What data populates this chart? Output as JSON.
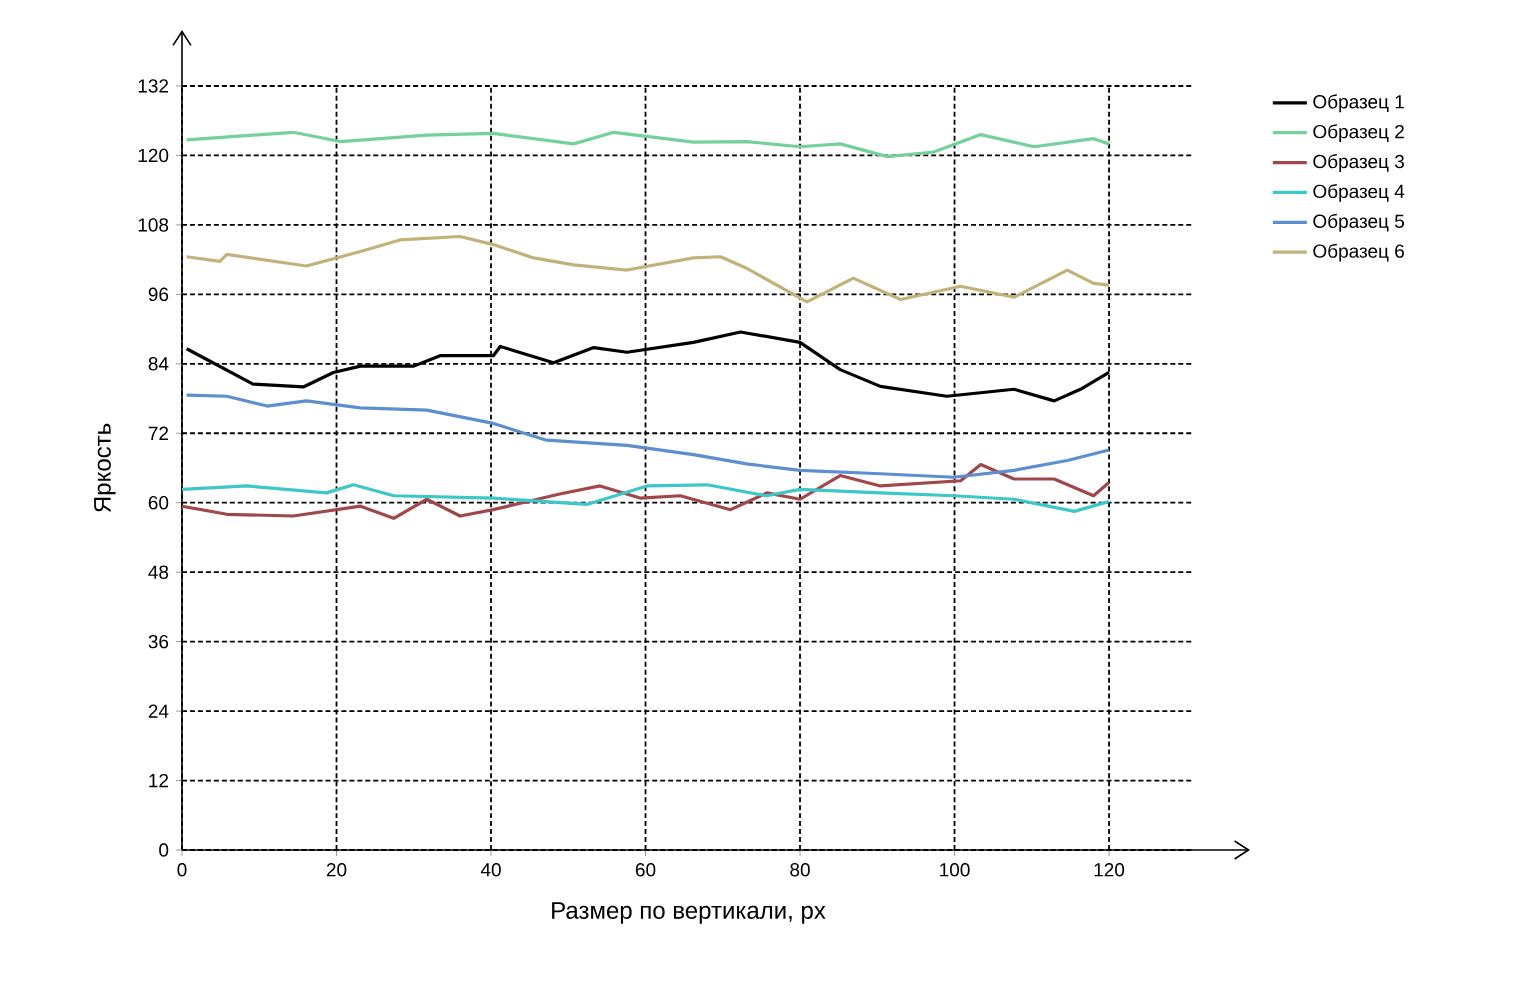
{
  "chart_data": {
    "type": "line",
    "xlabel": "Размер по вертикали, px",
    "ylabel": "Яркость",
    "xlim": [
      0,
      131
    ],
    "ylim": [
      0,
      132
    ],
    "xticks": [
      0,
      20,
      40,
      60,
      80,
      100,
      120
    ],
    "yticks": [
      0,
      12,
      24,
      36,
      48,
      60,
      72,
      84,
      96,
      108,
      120,
      132
    ],
    "grid": true,
    "legend": "right",
    "marker": "none",
    "line_style": "solid",
    "series": [
      {
        "name": "Образец 1",
        "color": "#000000",
        "x": [
          0.6,
          9.2,
          15.7,
          19.6,
          23.1,
          30,
          33.4,
          40.3,
          41.2,
          48.1,
          53.3,
          57.6,
          66.2,
          72.3,
          80,
          85.2,
          90.4,
          99,
          107.7,
          112.9,
          116.3,
          120
        ],
        "values": [
          86.6,
          80.5,
          80,
          82.5,
          83.6,
          83.6,
          85.4,
          85.4,
          87,
          84.2,
          86.8,
          86,
          87.7,
          89.5,
          87.7,
          83,
          80.1,
          78.4,
          79.6,
          77.6,
          79.6,
          82.5
        ]
      },
      {
        "name": "Образец 2",
        "color": "#74d19b",
        "x": [
          0.6,
          14.4,
          20.5,
          31.7,
          40.3,
          50.7,
          55.9,
          66.2,
          73.1,
          80,
          85.2,
          91.3,
          97.3,
          103.4,
          110.3,
          118,
          120
        ],
        "values": [
          122.7,
          124,
          122.4,
          123.5,
          123.8,
          122,
          124,
          122.3,
          122.4,
          121.5,
          122,
          119.8,
          120.6,
          123.6,
          121.5,
          122.9,
          122
        ]
      },
      {
        "name": "Образец 3",
        "color": "#a0474a",
        "x": [
          0,
          5.8,
          14.4,
          23.1,
          27.4,
          31.7,
          36,
          40.3,
          48.9,
          54.1,
          59.3,
          64.5,
          71,
          75.7,
          80,
          85.2,
          90.4,
          100.8,
          103.4,
          107.7,
          112.9,
          118,
          120
        ],
        "values": [
          59.4,
          58,
          57.7,
          59.4,
          57.3,
          60.6,
          57.7,
          58.8,
          61.5,
          62.9,
          60.8,
          61.2,
          58.8,
          61.7,
          60.6,
          64.7,
          62.9,
          63.8,
          66.6,
          64.1,
          64.1,
          61.2,
          63.5
        ]
      },
      {
        "name": "Образец 4",
        "color": "#3cc8c8",
        "x": [
          0,
          8.4,
          18.7,
          22.2,
          27.4,
          40.3,
          52.4,
          60.2,
          68,
          75.7,
          80,
          90.4,
          99.9,
          107.7,
          115.5,
          120
        ],
        "values": [
          62.3,
          62.9,
          61.7,
          63.1,
          61.2,
          60.8,
          59.7,
          62.9,
          63.1,
          61.2,
          62.3,
          61.7,
          61.2,
          60.6,
          58.5,
          60.2
        ]
      },
      {
        "name": "Образец 5",
        "color": "#5b8fd0",
        "x": [
          0.6,
          5.8,
          11,
          16.1,
          23.1,
          31.7,
          40.3,
          47.2,
          57.6,
          66.2,
          73.1,
          80,
          90.4,
          99.9,
          107.7,
          114.6,
          120
        ],
        "values": [
          78.6,
          78.4,
          76.7,
          77.6,
          76.4,
          76,
          73.7,
          70.8,
          69.9,
          68.3,
          66.7,
          65.6,
          65,
          64.4,
          65.6,
          67.3,
          69.1
        ]
      },
      {
        "name": "Образец 6",
        "color": "#c2b27a",
        "x": [
          0.6,
          4.9,
          5.8,
          16.1,
          23.1,
          28.2,
          36,
          40.3,
          45.5,
          50.7,
          57.6,
          66.2,
          69.7,
          73.1,
          80.9,
          86.9,
          93,
          100.8,
          107.7,
          114.6,
          118,
          120
        ],
        "values": [
          102.5,
          101.7,
          102.9,
          100.9,
          103.4,
          105.4,
          106,
          104.6,
          102.3,
          101.1,
          100.2,
          102.3,
          102.5,
          100.5,
          94.7,
          98.8,
          95.1,
          97.4,
          95.5,
          100.2,
          97.9,
          97.6
        ]
      }
    ]
  }
}
